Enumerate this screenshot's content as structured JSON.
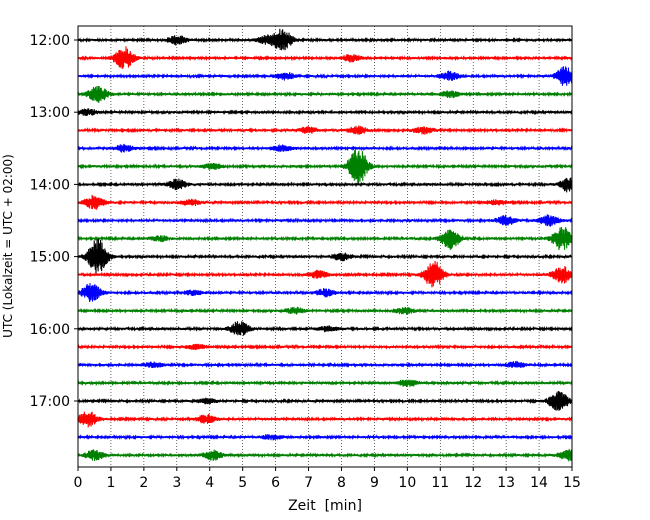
{
  "chart_data": {
    "type": "line",
    "title": "",
    "xlabel": "Zeit  [min]",
    "ylabel": "UTC (Lokalzeit = UTC + 02:00)",
    "xlim": [
      0,
      15
    ],
    "x_ticks": [
      0,
      1,
      2,
      3,
      4,
      5,
      6,
      7,
      8,
      9,
      10,
      11,
      12,
      13,
      14,
      15
    ],
    "x_tick_labels": [
      "0",
      "1",
      "2",
      "3",
      "4",
      "5",
      "6",
      "7",
      "8",
      "9",
      "10",
      "11",
      "12",
      "13",
      "14",
      "15"
    ],
    "y_tick_labels": [
      "12:00",
      "13:00",
      "14:00",
      "15:00",
      "16:00",
      "17:00"
    ],
    "y_tick_rows": [
      0,
      4,
      8,
      12,
      16,
      20
    ],
    "grid": "vertical dotted",
    "colors": [
      "#000000",
      "#ff0000",
      "#0000ff",
      "#008000"
    ],
    "minutes_per_row": 15,
    "series": [
      {
        "row": 0,
        "color": "#000000",
        "events": [
          {
            "t": 3.0,
            "a": 0.35
          },
          {
            "t": 6.2,
            "a": 0.9
          },
          {
            "t": 5.7,
            "a": 0.3
          }
        ]
      },
      {
        "row": 1,
        "color": "#ff0000",
        "events": [
          {
            "t": 1.4,
            "a": 0.9
          },
          {
            "t": 8.3,
            "a": 0.3
          }
        ]
      },
      {
        "row": 2,
        "color": "#0000ff",
        "events": [
          {
            "t": 6.3,
            "a": 0.3
          },
          {
            "t": 11.3,
            "a": 0.35
          },
          {
            "t": 14.8,
            "a": 0.8
          }
        ]
      },
      {
        "row": 3,
        "color": "#008000",
        "events": [
          {
            "t": 0.6,
            "a": 0.7
          },
          {
            "t": 11.3,
            "a": 0.25
          }
        ]
      },
      {
        "row": 4,
        "color": "#000000",
        "events": [
          {
            "t": 0.3,
            "a": 0.25
          }
        ]
      },
      {
        "row": 5,
        "color": "#ff0000",
        "events": [
          {
            "t": 7.0,
            "a": 0.25
          },
          {
            "t": 8.5,
            "a": 0.3
          },
          {
            "t": 10.5,
            "a": 0.3
          }
        ]
      },
      {
        "row": 6,
        "color": "#0000ff",
        "events": [
          {
            "t": 1.4,
            "a": 0.3
          },
          {
            "t": 6.2,
            "a": 0.25
          }
        ]
      },
      {
        "row": 7,
        "color": "#008000",
        "events": [
          {
            "t": 8.5,
            "a": 1.5
          },
          {
            "t": 4.1,
            "a": 0.25
          }
        ]
      },
      {
        "row": 8,
        "color": "#000000",
        "events": [
          {
            "t": 3.0,
            "a": 0.4
          },
          {
            "t": 14.9,
            "a": 0.6
          }
        ]
      },
      {
        "row": 9,
        "color": "#ff0000",
        "events": [
          {
            "t": 0.5,
            "a": 0.55
          },
          {
            "t": 3.4,
            "a": 0.25
          },
          {
            "t": 12.7,
            "a": 0.2
          }
        ]
      },
      {
        "row": 10,
        "color": "#0000ff",
        "events": [
          {
            "t": 13.0,
            "a": 0.4
          },
          {
            "t": 14.3,
            "a": 0.45
          }
        ]
      },
      {
        "row": 11,
        "color": "#008000",
        "events": [
          {
            "t": 11.3,
            "a": 0.85
          },
          {
            "t": 14.7,
            "a": 1.0
          },
          {
            "t": 2.5,
            "a": 0.2
          }
        ]
      },
      {
        "row": 12,
        "color": "#000000",
        "events": [
          {
            "t": 0.6,
            "a": 1.5
          },
          {
            "t": 8.0,
            "a": 0.3
          }
        ]
      },
      {
        "row": 13,
        "color": "#ff0000",
        "events": [
          {
            "t": 10.8,
            "a": 1.1
          },
          {
            "t": 14.7,
            "a": 0.7
          },
          {
            "t": 7.3,
            "a": 0.3
          }
        ]
      },
      {
        "row": 14,
        "color": "#0000ff",
        "events": [
          {
            "t": 0.4,
            "a": 0.75
          },
          {
            "t": 7.5,
            "a": 0.3
          },
          {
            "t": 3.5,
            "a": 0.2
          }
        ]
      },
      {
        "row": 15,
        "color": "#008000",
        "events": [
          {
            "t": 6.6,
            "a": 0.25
          },
          {
            "t": 9.9,
            "a": 0.25
          }
        ]
      },
      {
        "row": 16,
        "color": "#000000",
        "events": [
          {
            "t": 4.9,
            "a": 0.6
          },
          {
            "t": 7.6,
            "a": 0.2
          }
        ]
      },
      {
        "row": 17,
        "color": "#ff0000",
        "events": [
          {
            "t": 3.6,
            "a": 0.2
          }
        ]
      },
      {
        "row": 18,
        "color": "#0000ff",
        "events": [
          {
            "t": 2.3,
            "a": 0.2
          },
          {
            "t": 13.3,
            "a": 0.25
          }
        ]
      },
      {
        "row": 19,
        "color": "#008000",
        "events": [
          {
            "t": 10.0,
            "a": 0.3
          }
        ]
      },
      {
        "row": 20,
        "color": "#000000",
        "events": [
          {
            "t": 14.6,
            "a": 0.85
          },
          {
            "t": 3.9,
            "a": 0.2
          }
        ]
      },
      {
        "row": 21,
        "color": "#ff0000",
        "events": [
          {
            "t": 0.3,
            "a": 0.65
          },
          {
            "t": 3.9,
            "a": 0.35
          }
        ]
      },
      {
        "row": 22,
        "color": "#0000ff",
        "events": [
          {
            "t": 5.9,
            "a": 0.2
          }
        ]
      },
      {
        "row": 23,
        "color": "#008000",
        "events": [
          {
            "t": 0.5,
            "a": 0.4
          },
          {
            "t": 4.1,
            "a": 0.4
          },
          {
            "t": 14.9,
            "a": 0.45
          }
        ]
      }
    ]
  }
}
